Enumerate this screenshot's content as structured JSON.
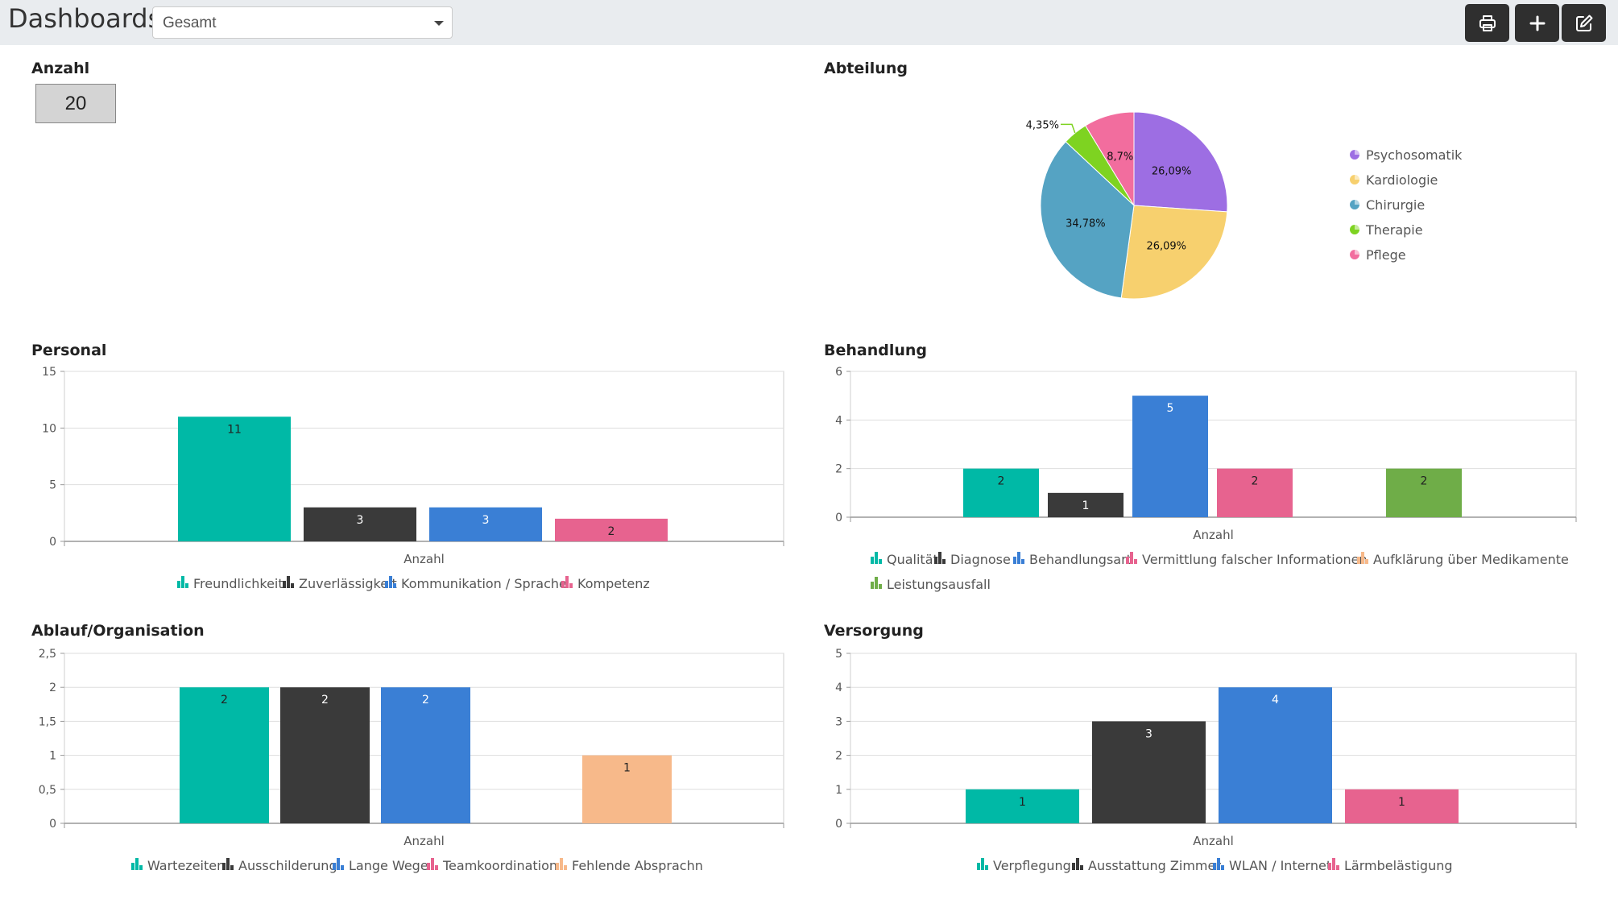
{
  "app": {
    "title": "Dashboards",
    "filter": {
      "selected": "Gesamt"
    },
    "toolbar": {
      "print_icon": "printer-icon",
      "add_icon": "plus-icon",
      "edit_icon": "edit-icon"
    }
  },
  "anzahl": {
    "title": "Anzahl",
    "value": "20"
  },
  "abteilung": {
    "title": "Abteilung",
    "chart_data": {
      "type": "pie",
      "slices": [
        {
          "name": "Psychosomatik",
          "value": 26.09,
          "label": "26,09%",
          "color": "#9d6ee3"
        },
        {
          "name": "Kardiologie",
          "value": 26.09,
          "label": "26,09%",
          "color": "#f7d06e"
        },
        {
          "name": "Chirurgie",
          "value": 34.78,
          "label": "34,78%",
          "color": "#55a3c3"
        },
        {
          "name": "Therapie",
          "value": 4.35,
          "label": "4,35%",
          "color": "#7ed321"
        },
        {
          "name": "Pflege",
          "value": 8.7,
          "label": "8,7%",
          "color": "#f26d9e"
        }
      ]
    }
  },
  "personal": {
    "title": "Personal",
    "chart_data": {
      "type": "bar",
      "xlabel": "Anzahl",
      "ylim": [
        0,
        15
      ],
      "yticks": [
        0,
        5,
        10,
        15
      ],
      "ytick_labels": [
        "0",
        "5",
        "10",
        "15"
      ],
      "series": [
        {
          "name": "Freundlichkeit",
          "value": 11,
          "color": "#00b9a6"
        },
        {
          "name": "Zuverlässigkeit",
          "value": 3,
          "color": "#3a3a3a"
        },
        {
          "name": "Kommunikation / Sprache",
          "value": 3,
          "color": "#3a7fd5"
        },
        {
          "name": "Kompetenz",
          "value": 2,
          "color": "#e7638f"
        }
      ]
    }
  },
  "behandlung": {
    "title": "Behandlung",
    "chart_data": {
      "type": "bar",
      "xlabel": "Anzahl",
      "ylim": [
        0,
        6
      ],
      "yticks": [
        0,
        2,
        4,
        6
      ],
      "ytick_labels": [
        "0",
        "2",
        "4",
        "6"
      ],
      "series": [
        {
          "name": "Qualität",
          "value": 2,
          "color": "#00b9a6"
        },
        {
          "name": "Diagnose",
          "value": 1,
          "color": "#3a3a3a"
        },
        {
          "name": "Behandlungsart",
          "value": 5,
          "color": "#3a7fd5"
        },
        {
          "name": "Vermittlung falscher Informationen",
          "value": 2,
          "color": "#e7638f"
        },
        {
          "name": "Aufklärung über Medikamente",
          "value": 0,
          "color": "#f7b98a"
        },
        {
          "name": "Leistungsausfall",
          "value": 2,
          "color": "#6fad48"
        }
      ]
    }
  },
  "ablauf": {
    "title": "Ablauf/Organisation",
    "chart_data": {
      "type": "bar",
      "xlabel": "Anzahl",
      "ylim": [
        0,
        2.5
      ],
      "yticks": [
        0,
        0.5,
        1,
        1.5,
        2,
        2.5
      ],
      "ytick_labels": [
        "0",
        "0,5",
        "1",
        "1,5",
        "2",
        "2,5"
      ],
      "series": [
        {
          "name": "Wartezeiten",
          "value": 2,
          "color": "#00b9a6"
        },
        {
          "name": "Ausschilderung",
          "value": 2,
          "color": "#3a3a3a"
        },
        {
          "name": "Lange Wege",
          "value": 2,
          "color": "#3a7fd5"
        },
        {
          "name": "Teamkoordination",
          "value": 0,
          "color": "#e7638f"
        },
        {
          "name": "Fehlende Absprachn",
          "value": 1,
          "color": "#f7b98a"
        }
      ]
    }
  },
  "versorgung": {
    "title": "Versorgung",
    "chart_data": {
      "type": "bar",
      "xlabel": "Anzahl",
      "ylim": [
        0,
        5
      ],
      "yticks": [
        0,
        1,
        2,
        3,
        4,
        5
      ],
      "ytick_labels": [
        "0",
        "1",
        "2",
        "3",
        "4",
        "5"
      ],
      "series": [
        {
          "name": "Verpflegung",
          "value": 1,
          "color": "#00b9a6"
        },
        {
          "name": "Ausstattung Zimmer",
          "value": 3,
          "color": "#3a3a3a"
        },
        {
          "name": "WLAN / Internet",
          "value": 4,
          "color": "#3a7fd5"
        },
        {
          "name": "Lärmbelästigung",
          "value": 1,
          "color": "#e7638f"
        }
      ]
    }
  }
}
